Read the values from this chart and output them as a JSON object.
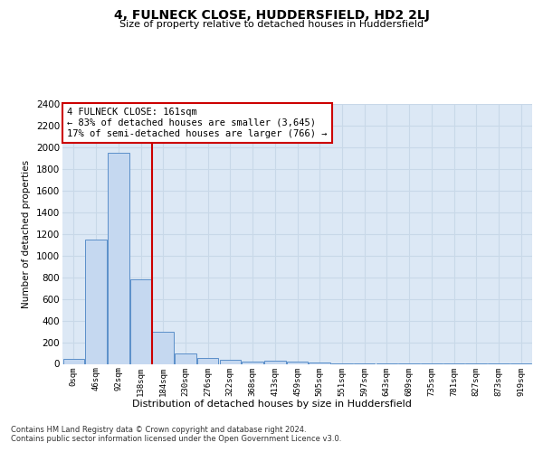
{
  "title": "4, FULNECK CLOSE, HUDDERSFIELD, HD2 2LJ",
  "subtitle": "Size of property relative to detached houses in Huddersfield",
  "xlabel": "Distribution of detached houses by size in Huddersfield",
  "ylabel": "Number of detached properties",
  "bin_labels": [
    "0sqm",
    "46sqm",
    "92sqm",
    "138sqm",
    "184sqm",
    "230sqm",
    "276sqm",
    "322sqm",
    "368sqm",
    "413sqm",
    "459sqm",
    "505sqm",
    "551sqm",
    "597sqm",
    "643sqm",
    "689sqm",
    "735sqm",
    "781sqm",
    "827sqm",
    "873sqm",
    "919sqm"
  ],
  "bar_values": [
    50,
    1150,
    1950,
    780,
    300,
    100,
    55,
    40,
    25,
    30,
    20,
    10,
    5,
    3,
    3,
    2,
    2,
    1,
    1,
    1,
    1
  ],
  "bar_color": "#c5d8f0",
  "bar_edge_color": "#5b8fc9",
  "grid_color": "#c8d8e8",
  "background_color": "#dce8f5",
  "vline_x": 3.5,
  "vline_color": "#cc0000",
  "annotation_line1": "4 FULNECK CLOSE: 161sqm",
  "annotation_line2": "← 83% of detached houses are smaller (3,645)",
  "annotation_line3": "17% of semi-detached houses are larger (766) →",
  "annotation_box_color": "#ffffff",
  "annotation_box_edge": "#cc0000",
  "ylim": [
    0,
    2400
  ],
  "yticks": [
    0,
    200,
    400,
    600,
    800,
    1000,
    1200,
    1400,
    1600,
    1800,
    2000,
    2200,
    2400
  ],
  "footer_line1": "Contains HM Land Registry data © Crown copyright and database right 2024.",
  "footer_line2": "Contains public sector information licensed under the Open Government Licence v3.0."
}
